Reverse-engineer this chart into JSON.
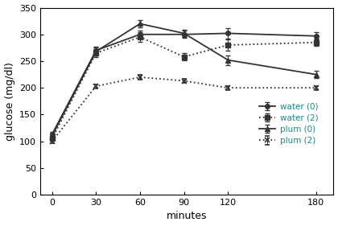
{
  "x": [
    0,
    30,
    60,
    90,
    120,
    180
  ],
  "water0_y": [
    113,
    270,
    300,
    300,
    302,
    297
  ],
  "water0_err": [
    4,
    7,
    7,
    7,
    10,
    7
  ],
  "water2_y": [
    105,
    265,
    295,
    258,
    280,
    285
  ],
  "water2_err": [
    4,
    7,
    9,
    7,
    10,
    7
  ],
  "plum0_y": [
    110,
    268,
    320,
    302,
    252,
    225
  ],
  "plum0_err": [
    4,
    7,
    7,
    7,
    9,
    7
  ],
  "plum2_y": [
    100,
    203,
    220,
    213,
    200,
    200
  ],
  "plum2_err": [
    4,
    4,
    4,
    4,
    4,
    4
  ],
  "xlim": [
    -8,
    192
  ],
  "ylim": [
    0,
    350
  ],
  "xticks": [
    0,
    30,
    60,
    90,
    120,
    180
  ],
  "yticks": [
    0,
    50,
    100,
    150,
    200,
    250,
    300,
    350
  ],
  "xlabel": "minutes",
  "ylabel": "glucose (mg/dl)",
  "legend_labels": [
    "water (0)",
    "water (2)",
    "plum (0)",
    "plum (2)"
  ],
  "line_color": "#333333",
  "legend_text_color": "#1a8a8a",
  "capsize": 2,
  "lw": 1.3
}
